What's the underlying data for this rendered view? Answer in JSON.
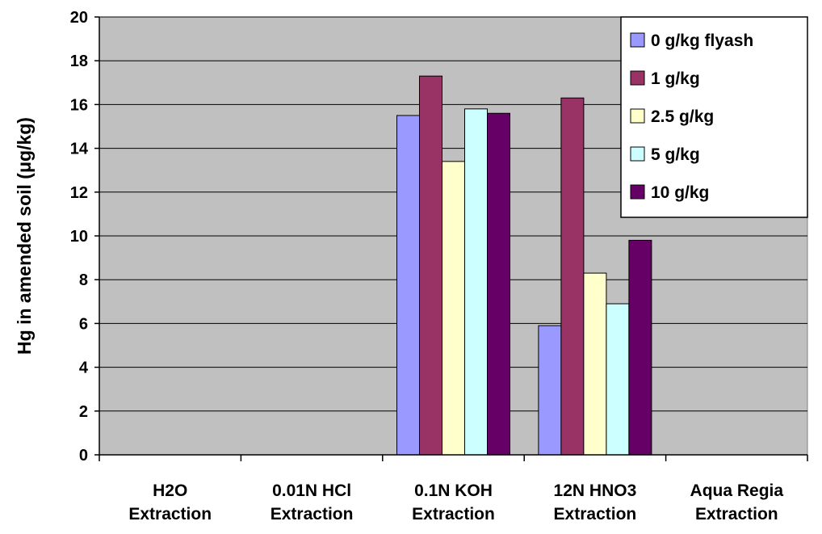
{
  "chart_data": {
    "type": "bar",
    "title": "",
    "xlabel": "",
    "ylabel": "Hg in amended soil (μg/kg)",
    "ylim": [
      0,
      20
    ],
    "ytick_step": 2,
    "grid": "horizontal",
    "legend_position": "top-right",
    "plot_background": "#c0c0c0",
    "categories": [
      [
        "H2O",
        "Extraction"
      ],
      [
        "0.01N HCl",
        "Extraction"
      ],
      [
        "0.1N KOH",
        "Extraction"
      ],
      [
        "12N HNO3",
        "Extraction"
      ],
      [
        "Aqua Regia",
        "Extraction"
      ]
    ],
    "series": [
      {
        "name": "0 g/kg flyash",
        "color": "#9999ff",
        "values": [
          null,
          null,
          15.5,
          5.9,
          null
        ]
      },
      {
        "name": "1 g/kg",
        "color": "#993366",
        "values": [
          null,
          null,
          17.3,
          16.3,
          null
        ]
      },
      {
        "name": "2.5 g/kg",
        "color": "#ffffcc",
        "values": [
          null,
          null,
          13.4,
          8.3,
          null
        ]
      },
      {
        "name": "5 g/kg",
        "color": "#ccffff",
        "values": [
          null,
          null,
          15.8,
          6.9,
          null
        ]
      },
      {
        "name": "10 g/kg",
        "color": "#660066",
        "values": [
          null,
          null,
          15.6,
          9.8,
          null
        ]
      }
    ]
  }
}
